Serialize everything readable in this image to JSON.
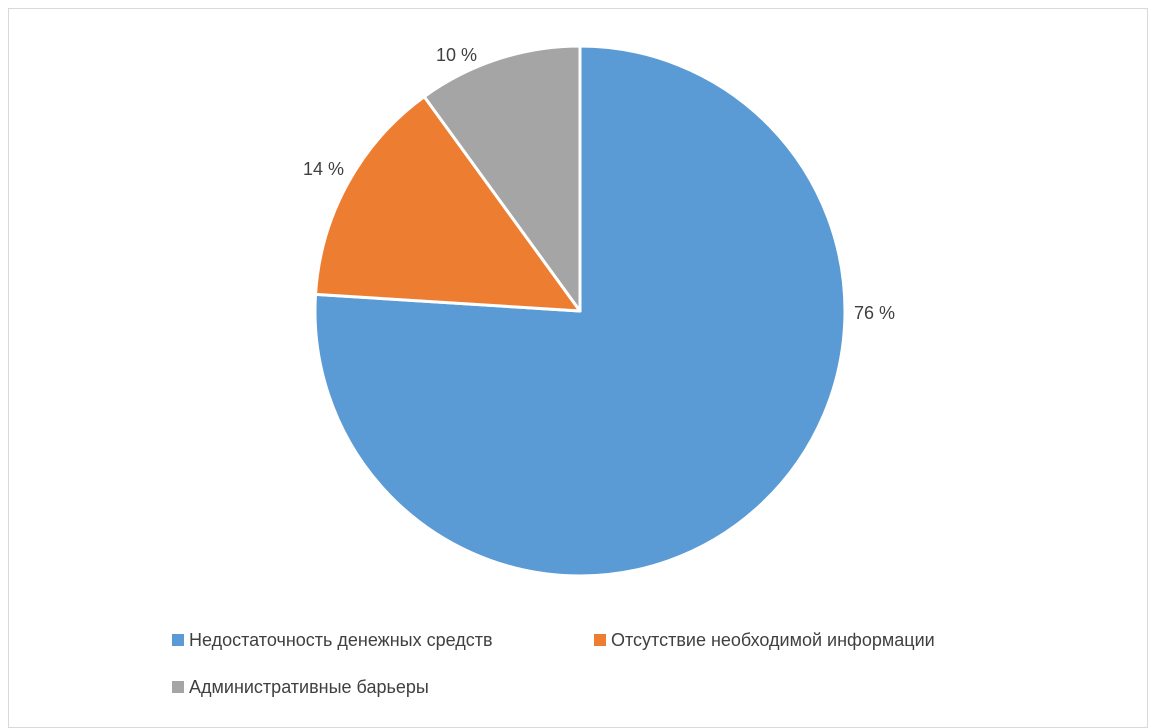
{
  "chart_data": {
    "type": "pie",
    "slices": [
      {
        "name": "Недостаточность денежных средств",
        "value": 76,
        "label": "76 %",
        "color": "#5B9BD5"
      },
      {
        "name": "Отсутствие необходимой информации",
        "value": 14,
        "label": "14 %",
        "color": "#ED7D31"
      },
      {
        "name": "Административные барьеры",
        "value": 10,
        "label": "10 %",
        "color": "#A5A5A5"
      }
    ],
    "start_angle": "12 o'clock",
    "direction": "clockwise",
    "legend_position": "bottom"
  }
}
